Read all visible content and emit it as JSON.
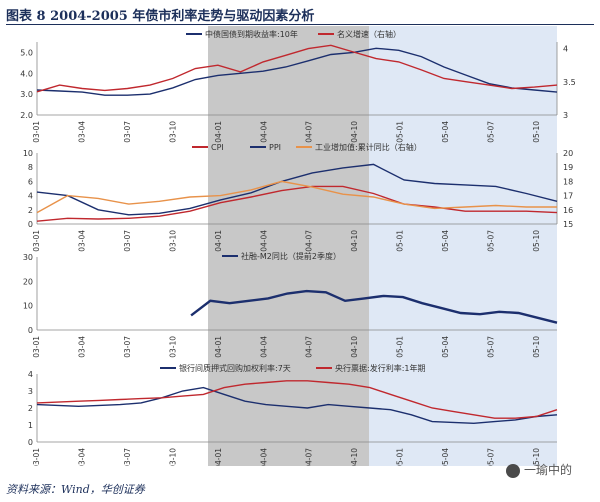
{
  "title": "图表 8    2004-2005 年债市利率走势与驱动因素分析",
  "source": "资料来源：Wind，华创证券",
  "watermark": "一瑜中的",
  "colors": {
    "navy": "#1c2f6e",
    "red": "#c0282e",
    "orange": "#e8924a",
    "shade_gray": "#c8c8c8",
    "shade_blue": "#dfe8f5"
  },
  "chart_data": [
    {
      "type": "line",
      "x_ticks": [
        "03-01",
        "03-04",
        "03-07",
        "03-10",
        "04-01",
        "04-04",
        "04-07",
        "04-10",
        "05-01",
        "05-04",
        "05-07",
        "05-10"
      ],
      "left_axis": {
        "ticks": [
          "2.0",
          "3.0",
          "4.0",
          "5.0"
        ],
        "ylim": [
          2,
          5.5
        ]
      },
      "right_axis": {
        "ticks": [
          "3",
          "3.5",
          "4"
        ],
        "ylim": [
          3,
          4.1
        ]
      },
      "series": [
        {
          "name": "中债国债到期收益率:10年",
          "axis": "left",
          "color": "navy",
          "values": [
            3.2,
            3.15,
            3.1,
            2.95,
            2.95,
            3.0,
            3.3,
            3.7,
            3.9,
            4.0,
            4.1,
            4.3,
            4.6,
            4.9,
            5.0,
            5.2,
            5.1,
            4.8,
            4.3,
            3.9,
            3.5,
            3.3,
            3.2,
            3.1
          ]
        },
        {
          "name": "名义增速（右轴）",
          "axis": "right",
          "color": "red",
          "values": [
            3.35,
            3.45,
            3.4,
            3.37,
            3.4,
            3.45,
            3.55,
            3.7,
            3.75,
            3.65,
            3.8,
            3.9,
            4.0,
            4.05,
            3.95,
            3.85,
            3.8,
            3.68,
            3.55,
            3.5,
            3.45,
            3.4,
            3.42,
            3.45
          ]
        }
      ]
    },
    {
      "type": "line",
      "x_ticks": [
        "03-01",
        "03-04",
        "03-07",
        "03-10",
        "04-01",
        "04-04",
        "04-07",
        "04-10",
        "05-01",
        "05-04",
        "05-07",
        "05-10"
      ],
      "left_axis": {
        "ticks": [
          "0",
          "2",
          "4",
          "6",
          "8",
          "10"
        ],
        "ylim": [
          0,
          10
        ]
      },
      "right_axis": {
        "ticks": [
          "15",
          "16",
          "17",
          "18",
          "19",
          "20"
        ],
        "ylim": [
          15,
          20
        ]
      },
      "series": [
        {
          "name": "CPI",
          "axis": "left",
          "color": "red",
          "values": [
            0.4,
            0.8,
            0.7,
            0.8,
            1.1,
            1.8,
            3.0,
            3.8,
            4.7,
            5.3,
            5.3,
            4.3,
            2.8,
            2.4,
            1.8,
            1.8,
            1.8,
            1.6
          ]
        },
        {
          "name": "PPI",
          "axis": "left",
          "color": "navy",
          "values": [
            4.5,
            4.0,
            2.0,
            1.3,
            1.5,
            2.2,
            3.4,
            4.4,
            6.0,
            7.2,
            7.9,
            8.4,
            6.2,
            5.7,
            5.5,
            5.3,
            4.3,
            3.2
          ]
        },
        {
          "name": "工业增加值:累计同比（右轴）",
          "axis": "right",
          "color": "orange",
          "values": [
            15.8,
            17.0,
            16.8,
            16.4,
            16.6,
            16.9,
            17.0,
            17.4,
            18.0,
            17.6,
            17.1,
            16.9,
            16.4,
            16.1,
            16.2,
            16.3,
            16.2,
            16.2
          ]
        }
      ]
    },
    {
      "type": "line",
      "x_ticks": [
        "03-01",
        "03-04",
        "03-07",
        "03-10",
        "04-01",
        "04-04",
        "04-07",
        "04-10",
        "05-01",
        "05-04",
        "05-07",
        "05-10"
      ],
      "left_axis": {
        "ticks": [
          "0",
          "10",
          "20",
          "30"
        ],
        "ylim": [
          0,
          30
        ]
      },
      "series": [
        {
          "name": "社融-M2同比（提前2季度）",
          "axis": "left",
          "color": "navy",
          "values": [
            null,
            null,
            null,
            null,
            null,
            null,
            null,
            null,
            6.0,
            12.0,
            11.0,
            12.0,
            13.0,
            15.0,
            16.0,
            15.5,
            12.0,
            13.0,
            14.0,
            13.5,
            11.0,
            9.0,
            7.0,
            6.5,
            7.5,
            7.0,
            5.0,
            3.0
          ]
        }
      ]
    },
    {
      "type": "line",
      "x_ticks": [
        "03-01",
        "03-04",
        "03-07",
        "03-10",
        "04-01",
        "04-04",
        "04-07",
        "04-10",
        "05-01",
        "05-04",
        "05-07",
        "05-10"
      ],
      "left_axis": {
        "ticks": [
          "0",
          "1",
          "2",
          "3",
          "4"
        ],
        "ylim": [
          0,
          4
        ]
      },
      "series": [
        {
          "name": "银行间质押式回购加权利率:7天",
          "axis": "left",
          "color": "navy",
          "values": [
            2.2,
            2.15,
            2.1,
            2.15,
            2.2,
            2.3,
            2.6,
            3.0,
            3.2,
            2.8,
            2.4,
            2.2,
            2.1,
            2.0,
            2.2,
            2.1,
            2.0,
            1.9,
            1.6,
            1.2,
            1.15,
            1.1,
            1.2,
            1.3,
            1.5,
            1.6
          ]
        },
        {
          "name": "央行票据:发行利率:1年期",
          "axis": "left",
          "color": "red",
          "values": [
            2.3,
            2.35,
            2.4,
            2.45,
            2.5,
            2.55,
            2.6,
            2.7,
            2.8,
            3.2,
            3.4,
            3.5,
            3.6,
            3.6,
            3.5,
            3.4,
            3.2,
            2.8,
            2.4,
            2.0,
            1.8,
            1.6,
            1.4,
            1.4,
            1.5,
            1.9
          ]
        }
      ]
    }
  ]
}
